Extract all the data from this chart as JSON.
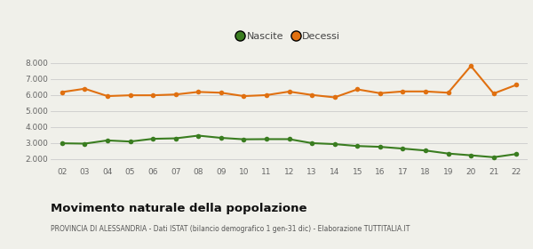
{
  "years": [
    2,
    3,
    4,
    5,
    6,
    7,
    8,
    9,
    10,
    11,
    12,
    13,
    14,
    15,
    16,
    17,
    18,
    19,
    20,
    21,
    22
  ],
  "nascite": [
    2970,
    2950,
    3150,
    3080,
    3250,
    3280,
    3450,
    3310,
    3220,
    3230,
    3230,
    2980,
    2920,
    2800,
    2750,
    2640,
    2520,
    2330,
    2220,
    2100,
    2300
  ],
  "decessi": [
    6170,
    6380,
    5920,
    5970,
    5970,
    6020,
    6180,
    6130,
    5920,
    5980,
    6200,
    5990,
    5840,
    6340,
    6100,
    6210,
    6210,
    6130,
    7800,
    6080,
    6620
  ],
  "nascite_color": "#3a7d20",
  "decessi_color": "#e07010",
  "bg_color": "#f0f0ea",
  "grid_color": "#cccccc",
  "ylim": [
    1500,
    8500
  ],
  "yticks": [
    2000,
    3000,
    4000,
    5000,
    6000,
    7000,
    8000
  ],
  "title": "Movimento naturale della popolazione",
  "subtitle": "PROVINCIA DI ALESSANDRIA - Dati ISTAT (bilancio demografico 1 gen-31 dic) - Elaborazione TUTTITALIA.IT",
  "legend_nascite": "Nascite",
  "legend_decessi": "Decessi",
  "marker_size": 4.0,
  "line_width": 1.5
}
